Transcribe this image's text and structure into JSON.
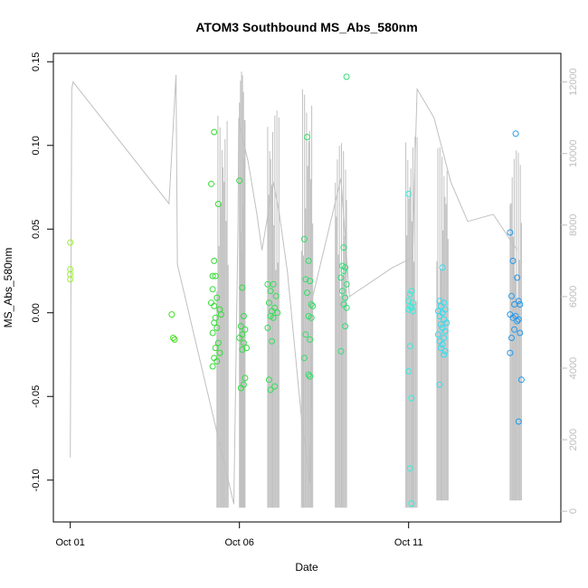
{
  "chart_data": {
    "type": "scatter",
    "title": "ATOM3 Southbound MS_Abs_580nm",
    "xlabel": "Date",
    "ylabel": "MS_Abs_580nm",
    "x_axis": {
      "type": "date",
      "range": [
        "2016-09-30T12:00",
        "2016-10-15T12:00"
      ],
      "ticks": [
        {
          "value": "2016-10-01",
          "label": "Oct 01"
        },
        {
          "value": "2016-10-06",
          "label": "Oct 06"
        },
        {
          "value": "2016-10-11",
          "label": "Oct 11"
        }
      ]
    },
    "y_axis": {
      "range": [
        -0.125,
        0.155
      ],
      "ticks": [
        {
          "value": -0.1,
          "label": "-0.10"
        },
        {
          "value": -0.05,
          "label": "-0.05"
        },
        {
          "value": 0.0,
          "label": "0.00"
        },
        {
          "value": 0.05,
          "label": "0.05"
        },
        {
          "value": 0.1,
          "label": "0.10"
        },
        {
          "value": 0.15,
          "label": "0.15"
        }
      ]
    },
    "y2_axis": {
      "range": [
        -300,
        12800
      ],
      "ticks": [
        {
          "value": 0,
          "label": "0"
        },
        {
          "value": 2000,
          "label": "2000"
        },
        {
          "value": 4000,
          "label": "4000"
        },
        {
          "value": 6000,
          "label": "6000"
        },
        {
          "value": 8000,
          "label": "8000"
        },
        {
          "value": 10000,
          "label": "10000"
        },
        {
          "value": 12000,
          "label": "12000"
        }
      ],
      "color": "#bdbdbd"
    },
    "grid": false,
    "line_series": {
      "axis": "right",
      "color": "#c0c0c0",
      "points": [
        [
          "2016-10-01T00:00",
          1500
        ],
        [
          "2016-10-01T01:00",
          11800
        ],
        [
          "2016-10-01T02:00",
          12000
        ],
        [
          "2016-10-03T22:00",
          8600
        ],
        [
          "2016-10-04T03:00",
          12200
        ],
        [
          "2016-10-04T04:00",
          6900
        ],
        [
          "2016-10-05T20:00",
          200
        ],
        [
          "2016-10-05T23:00",
          8000
        ],
        [
          "2016-10-05T23:30",
          11000
        ],
        [
          "2016-10-06T00:00",
          10800
        ],
        [
          "2016-10-06T06:00",
          9800
        ],
        [
          "2016-10-06T12:00",
          8400
        ],
        [
          "2016-10-06T16:00",
          7300
        ],
        [
          "2016-10-07T00:00",
          9200
        ],
        [
          "2016-10-07T04:00",
          8400
        ],
        [
          "2016-10-07T10:00",
          6700
        ],
        [
          "2016-10-07T20:00",
          2600
        ],
        [
          "2016-10-08T02:00",
          800
        ],
        [
          "2016-10-08T04:00",
          6000
        ],
        [
          "2016-10-09T00:00",
          9300
        ],
        [
          "2016-10-09T06:00",
          6000
        ],
        [
          "2016-10-10T12:00",
          6800
        ],
        [
          "2016-10-11T03:00",
          7100
        ],
        [
          "2016-10-11T04:00",
          9000
        ],
        [
          "2016-10-11T06:00",
          11800
        ],
        [
          "2016-10-11T18:00",
          11000
        ],
        [
          "2016-10-12T06:00",
          9200
        ],
        [
          "2016-10-12T18:00",
          8100
        ],
        [
          "2016-10-13T12:00",
          8300
        ],
        [
          "2016-10-14T05:00",
          7300
        ]
      ],
      "bursts": [
        {
          "start": "2016-10-05T08:00",
          "end": "2016-10-05T16:00",
          "min": 100,
          "max": 11100
        },
        {
          "start": "2016-10-06T00:00",
          "end": "2016-10-06T04:00",
          "min": 100,
          "max": 12300
        },
        {
          "start": "2016-10-06T20:00",
          "end": "2016-10-07T04:00",
          "min": 100,
          "max": 11200
        },
        {
          "start": "2016-10-07T20:00",
          "end": "2016-10-08T04:00",
          "min": 100,
          "max": 11800
        },
        {
          "start": "2016-10-08T20:00",
          "end": "2016-10-09T04:00",
          "min": 100,
          "max": 10300
        },
        {
          "start": "2016-10-10T22:00",
          "end": "2016-10-11T06:00",
          "min": 100,
          "max": 10500
        },
        {
          "start": "2016-10-11T20:00",
          "end": "2016-10-12T04:00",
          "min": 300,
          "max": 10200
        },
        {
          "start": "2016-10-14T00:00",
          "end": "2016-10-14T08:00",
          "min": 300,
          "max": 10100
        }
      ]
    },
    "scatter_series": [
      {
        "color": "#99ee33",
        "points": [
          [
            "2016-10-01T00:00",
            0.042
          ],
          [
            "2016-10-01T00:00",
            0.026
          ],
          [
            "2016-10-01T00:00",
            0.023
          ],
          [
            "2016-10-01T00:00",
            0.02
          ]
        ]
      },
      {
        "color": "#44dd22",
        "points": [
          [
            "2016-10-04T00:00",
            -0.001
          ],
          [
            "2016-10-04T01:00",
            -0.015
          ],
          [
            "2016-10-04T02:00",
            -0.016
          ]
        ]
      },
      {
        "color": "#33dd33",
        "points": [
          [
            "2016-10-05T04:00",
            0.077
          ],
          [
            "2016-10-05T06:00",
            0.108
          ],
          [
            "2016-10-05T09:00",
            0.065
          ],
          [
            "2016-10-05T06:00",
            0.031
          ],
          [
            "2016-10-05T05:00",
            0.022
          ],
          [
            "2016-10-05T07:00",
            0.022
          ],
          [
            "2016-10-05T05:00",
            0.014
          ],
          [
            "2016-10-05T08:00",
            0.009
          ],
          [
            "2016-10-05T04:00",
            0.006
          ],
          [
            "2016-10-05T06:00",
            0.004
          ],
          [
            "2016-10-05T10:00",
            0.002
          ],
          [
            "2016-10-05T11:00",
            -0.001
          ],
          [
            "2016-10-05T07:00",
            -0.003
          ],
          [
            "2016-10-05T06:00",
            -0.006
          ],
          [
            "2016-10-05T08:00",
            -0.009
          ],
          [
            "2016-10-05T05:00",
            -0.012
          ],
          [
            "2016-10-05T09:00",
            -0.018
          ],
          [
            "2016-10-05T07:00",
            -0.021
          ],
          [
            "2016-10-05T10:00",
            -0.024
          ],
          [
            "2016-10-05T06:00",
            -0.027
          ],
          [
            "2016-10-05T08:00",
            -0.029
          ],
          [
            "2016-10-05T05:00",
            -0.032
          ]
        ]
      },
      {
        "color": "#33dd44",
        "points": [
          [
            "2016-10-06T00:00",
            0.079
          ],
          [
            "2016-10-06T02:00",
            0.015
          ],
          [
            "2016-10-06T03:00",
            -0.002
          ],
          [
            "2016-10-06T01:00",
            -0.008
          ],
          [
            "2016-10-06T04:00",
            -0.01
          ],
          [
            "2016-10-06T02:00",
            -0.013
          ],
          [
            "2016-10-06T00:00",
            -0.015
          ],
          [
            "2016-10-06T03:00",
            -0.018
          ],
          [
            "2016-10-06T05:00",
            -0.021
          ],
          [
            "2016-10-06T02:00",
            -0.022
          ],
          [
            "2016-10-06T04:00",
            -0.039
          ],
          [
            "2016-10-06T03:00",
            -0.043
          ],
          [
            "2016-10-06T01:00",
            -0.045
          ]
        ]
      },
      {
        "color": "#33dd55",
        "points": [
          [
            "2016-10-06T20:00",
            0.017
          ],
          [
            "2016-10-07T00:00",
            0.017
          ],
          [
            "2016-10-06T22:00",
            0.013
          ],
          [
            "2016-10-07T02:00",
            0.01
          ],
          [
            "2016-10-06T21:00",
            0.006
          ],
          [
            "2016-10-07T01:00",
            0.003
          ],
          [
            "2016-10-06T23:00",
            0.001
          ],
          [
            "2016-10-07T03:00",
            0.0
          ],
          [
            "2016-10-06T22:00",
            -0.002
          ],
          [
            "2016-10-07T00:00",
            -0.003
          ],
          [
            "2016-10-06T20:00",
            -0.009
          ],
          [
            "2016-10-06T23:00",
            -0.017
          ],
          [
            "2016-10-06T21:00",
            -0.04
          ],
          [
            "2016-10-07T01:00",
            -0.044
          ],
          [
            "2016-10-06T22:00",
            -0.046
          ]
        ]
      },
      {
        "color": "#33dd66",
        "points": [
          [
            "2016-10-08T00:00",
            0.105
          ],
          [
            "2016-10-07T22:00",
            0.044
          ],
          [
            "2016-10-08T01:00",
            0.031
          ],
          [
            "2016-10-07T23:00",
            0.02
          ],
          [
            "2016-10-08T02:00",
            0.019
          ],
          [
            "2016-10-08T00:00",
            0.012
          ],
          [
            "2016-10-08T03:00",
            0.005
          ],
          [
            "2016-10-08T04:00",
            0.004
          ],
          [
            "2016-10-08T01:00",
            -0.002
          ],
          [
            "2016-10-08T03:00",
            -0.003
          ],
          [
            "2016-10-07T23:00",
            -0.013
          ],
          [
            "2016-10-08T02:00",
            -0.016
          ],
          [
            "2016-10-07T22:00",
            -0.027
          ],
          [
            "2016-10-08T01:00",
            -0.037
          ],
          [
            "2016-10-08T02:00",
            -0.038
          ]
        ]
      },
      {
        "color": "#33dd77",
        "points": [
          [
            "2016-10-09T04:00",
            0.141
          ],
          [
            "2016-10-09T02:00",
            0.039
          ],
          [
            "2016-10-09T01:00",
            0.028
          ],
          [
            "2016-10-09T03:00",
            0.027
          ],
          [
            "2016-10-09T02:00",
            0.025
          ],
          [
            "2016-10-09T00:00",
            0.021
          ],
          [
            "2016-10-09T04:00",
            0.017
          ],
          [
            "2016-10-09T01:00",
            0.013
          ],
          [
            "2016-10-09T03:00",
            0.009
          ],
          [
            "2016-10-09T02:00",
            0.005
          ],
          [
            "2016-10-09T04:00",
            0.003
          ],
          [
            "2016-10-09T03:00",
            -0.008
          ],
          [
            "2016-10-09T00:00",
            -0.023
          ]
        ]
      },
      {
        "color": "#33eedd",
        "points": [
          [
            "2016-10-11T00:00",
            0.071
          ],
          [
            "2016-10-11T02:00",
            0.013
          ],
          [
            "2016-10-11T01:00",
            0.011
          ],
          [
            "2016-10-11T00:00",
            0.007
          ],
          [
            "2016-10-11T03:00",
            0.006
          ],
          [
            "2016-10-11T01:00",
            0.004
          ],
          [
            "2016-10-11T02:00",
            0.003
          ],
          [
            "2016-10-11T00:00",
            0.002
          ],
          [
            "2016-10-11T03:00",
            0.001
          ],
          [
            "2016-10-11T01:00",
            -0.02
          ],
          [
            "2016-10-11T00:00",
            -0.035
          ],
          [
            "2016-10-11T02:00",
            -0.051
          ],
          [
            "2016-10-11T01:00",
            -0.093
          ],
          [
            "2016-10-11T02:00",
            -0.114
          ]
        ]
      },
      {
        "color": "#33ddee",
        "points": [
          [
            "2016-10-12T00:00",
            0.027
          ],
          [
            "2016-10-11T22:00",
            0.007
          ],
          [
            "2016-10-12T01:00",
            0.006
          ],
          [
            "2016-10-11T23:00",
            0.004
          ],
          [
            "2016-10-12T02:00",
            0.002
          ],
          [
            "2016-10-11T21:00",
            0.001
          ],
          [
            "2016-10-12T00:00",
            0.0
          ],
          [
            "2016-10-11T22:00",
            -0.002
          ],
          [
            "2016-10-12T01:00",
            -0.004
          ],
          [
            "2016-10-12T03:00",
            -0.006
          ],
          [
            "2016-10-11T23:00",
            -0.007
          ],
          [
            "2016-10-12T00:00",
            -0.009
          ],
          [
            "2016-10-12T02:00",
            -0.011
          ],
          [
            "2016-10-11T21:00",
            -0.013
          ],
          [
            "2016-10-12T01:00",
            -0.015
          ],
          [
            "2016-10-11T22:00",
            -0.017
          ],
          [
            "2016-10-12T00:00",
            -0.019
          ],
          [
            "2016-10-11T23:00",
            -0.021
          ],
          [
            "2016-10-12T02:00",
            -0.023
          ],
          [
            "2016-10-12T01:00",
            -0.025
          ],
          [
            "2016-10-11T22:00",
            -0.043
          ]
        ]
      },
      {
        "color": "#2299ee",
        "points": [
          [
            "2016-10-14T04:00",
            0.107
          ],
          [
            "2016-10-14T00:00",
            0.048
          ],
          [
            "2016-10-14T02:00",
            0.031
          ],
          [
            "2016-10-14T05:00",
            0.021
          ],
          [
            "2016-10-14T01:00",
            0.01
          ],
          [
            "2016-10-14T06:00",
            0.007
          ],
          [
            "2016-10-14T03:00",
            0.005
          ],
          [
            "2016-10-14T07:00",
            0.005
          ],
          [
            "2016-10-14T00:00",
            -0.001
          ],
          [
            "2016-10-14T04:00",
            -0.002
          ],
          [
            "2016-10-14T02:00",
            -0.003
          ],
          [
            "2016-10-14T06:00",
            -0.004
          ],
          [
            "2016-10-14T05:00",
            -0.005
          ],
          [
            "2016-10-14T03:00",
            -0.01
          ],
          [
            "2016-10-14T07:00",
            -0.012
          ],
          [
            "2016-10-14T01:00",
            -0.015
          ],
          [
            "2016-10-14T00:00",
            -0.024
          ],
          [
            "2016-10-14T08:00",
            -0.04
          ],
          [
            "2016-10-14T06:00",
            -0.065
          ]
        ]
      }
    ]
  }
}
